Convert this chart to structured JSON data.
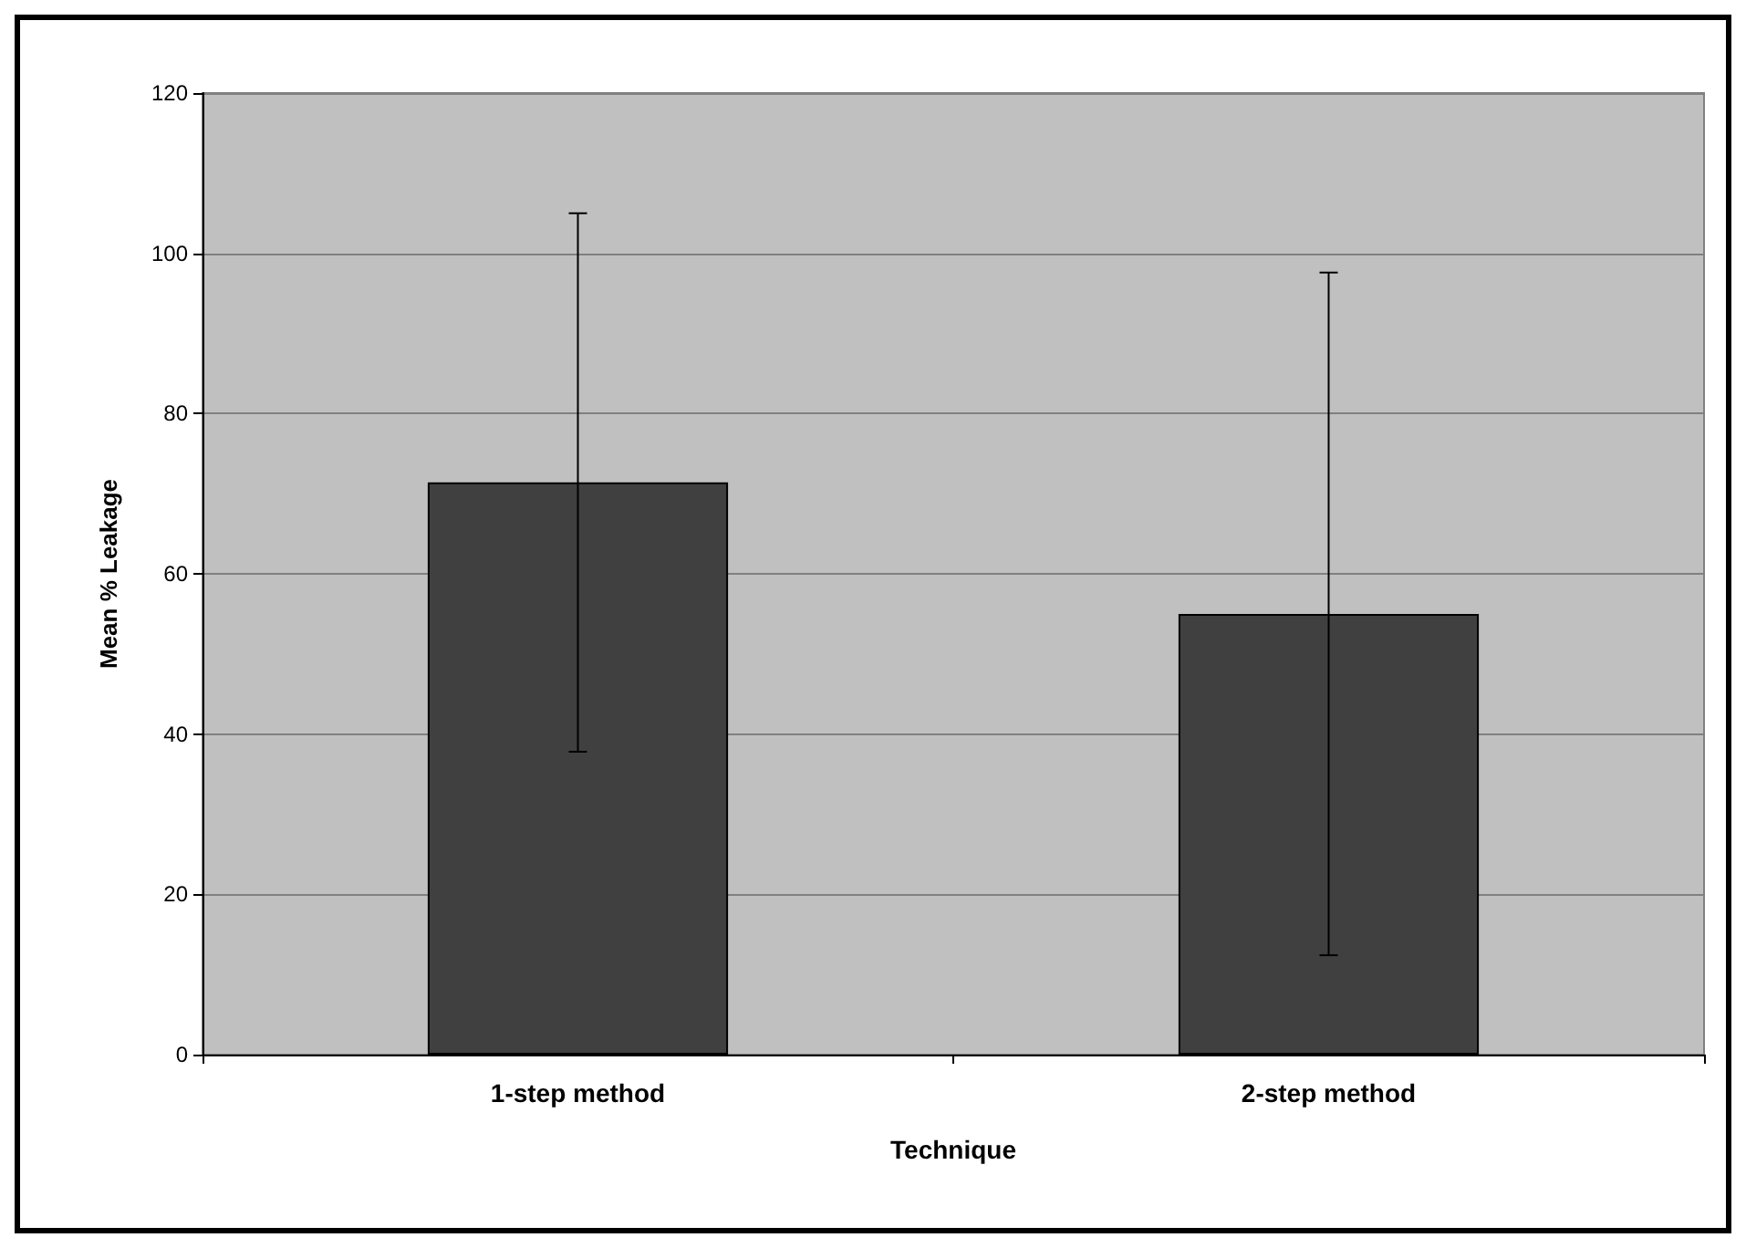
{
  "chart_data": {
    "type": "bar",
    "xlabel": "Technique",
    "ylabel": "Mean % Leakage",
    "categories": [
      "1-step method",
      "2-step method"
    ],
    "values": [
      71.4,
      55
    ],
    "errors": [
      33.6,
      42.6
    ],
    "color": "#404040",
    "ylim": [
      0,
      120
    ],
    "yticks": [
      0,
      20,
      40,
      60,
      80,
      100,
      120
    ],
    "grid": "y"
  }
}
